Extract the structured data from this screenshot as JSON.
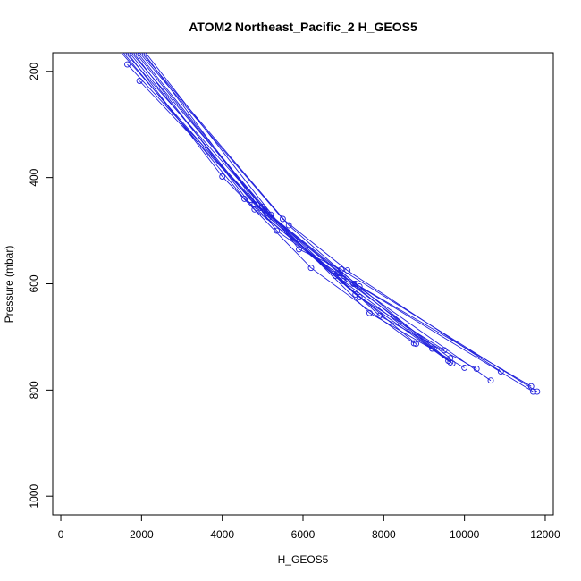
{
  "chart_data": {
    "type": "line",
    "title": "ATOM2 Northeast_Pacific_2 H_GEOS5",
    "xlabel": "H_GEOS5",
    "ylabel": "Pressure (mbar)",
    "xlim": [
      -200,
      12200
    ],
    "ylim": [
      1035,
      165
    ],
    "y_reversed": true,
    "grid": false,
    "line_color": "#1f1fdc",
    "x_ticks": [
      0,
      2000,
      4000,
      6000,
      8000,
      10000,
      12000
    ],
    "x_tick_labels": [
      "0",
      "2000",
      "4000",
      "6000",
      "8000",
      "10000",
      "12000"
    ],
    "y_ticks": [
      200,
      400,
      600,
      800,
      1000
    ],
    "y_tick_labels": [
      "200",
      "400",
      "600",
      "800",
      "1000"
    ],
    "series": [
      {
        "x": [
          1500,
          4800,
          7300,
          9500
        ],
        "y": [
          165,
          450,
          620,
          725
        ]
      },
      {
        "x": [
          1550,
          4550,
          7400,
          9650
        ],
        "y": [
          165,
          440,
          625,
          748
        ]
      },
      {
        "x": [
          1600,
          5000,
          7650,
          10000
        ],
        "y": [
          165,
          455,
          655,
          758
        ]
      },
      {
        "x": [
          1650,
          4000,
          6200,
          8750
        ],
        "y": [
          165,
          398,
          570,
          712
        ]
      },
      {
        "x": [
          1700,
          4700,
          6900,
          9600
        ],
        "y": [
          165,
          442,
          580,
          745
        ]
      },
      {
        "x": [
          1750,
          5200,
          7900,
          10300
        ],
        "y": [
          165,
          470,
          660,
          760
        ]
      },
      {
        "x": [
          1800,
          4800,
          7000,
          9650
        ],
        "y": [
          165,
          460,
          590,
          740
        ]
      },
      {
        "x": [
          1850,
          5050,
          7250,
          10650
        ],
        "y": [
          165,
          462,
          600,
          782
        ]
      },
      {
        "x": [
          1900,
          5100,
          7400,
          9700
        ],
        "y": [
          165,
          465,
          605,
          750
        ]
      },
      {
        "x": [
          1950,
          5500,
          7100,
          10900
        ],
        "y": [
          165,
          478,
          575,
          765
        ]
      },
      {
        "x": [
          2000,
          5650,
          7300,
          11650
        ],
        "y": [
          165,
          490,
          600,
          793
        ]
      },
      {
        "x": [
          2050,
          5350,
          6850,
          11700
        ],
        "y": [
          165,
          500,
          580,
          803
        ]
      },
      {
        "x": [
          2100,
          5900,
          6950,
          11800
        ],
        "y": [
          165,
          535,
          573,
          803
        ]
      },
      {
        "x": [
          1650,
          4950,
          6800,
          8800
        ],
        "y": [
          187,
          457,
          585,
          713
        ]
      },
      {
        "x": [
          1950,
          5150,
          7000,
          9200
        ],
        "y": [
          218,
          475,
          595,
          722
        ]
      }
    ]
  }
}
